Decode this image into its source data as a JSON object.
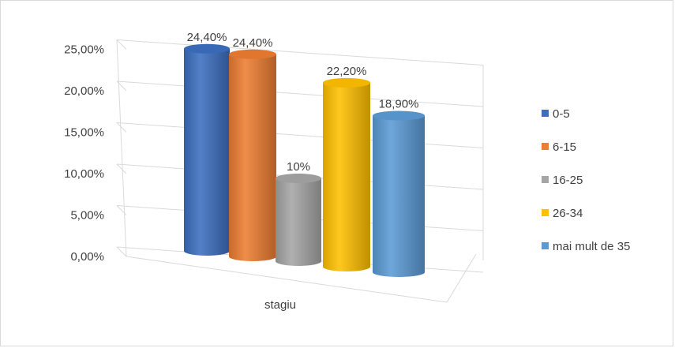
{
  "chart_data": {
    "type": "bar",
    "categories": [
      "stagiu"
    ],
    "xlabel": "stagiu",
    "ylim": [
      0,
      25
    ],
    "y_ticks": [
      "0,00%",
      "5,00%",
      "10,00%",
      "15,00%",
      "20,00%",
      "25,00%"
    ],
    "gridlines": true,
    "legend_position": "right",
    "series": [
      {
        "name": "0-5",
        "values": [
          24.4
        ],
        "label": "24,40%",
        "color": "#3c6fc0"
      },
      {
        "name": "6-15",
        "values": [
          24.4
        ],
        "label": "24,40%",
        "color": "#ed7d31"
      },
      {
        "name": "16-25",
        "values": [
          10
        ],
        "label": "10%",
        "color": "#a5a5a5"
      },
      {
        "name": "26-34",
        "values": [
          22.2
        ],
        "label": "22,20%",
        "color": "#ffc000"
      },
      {
        "name": "mai mult de 35",
        "values": [
          18.9
        ],
        "label": "18,90%",
        "color": "#5b9bd5"
      }
    ]
  }
}
